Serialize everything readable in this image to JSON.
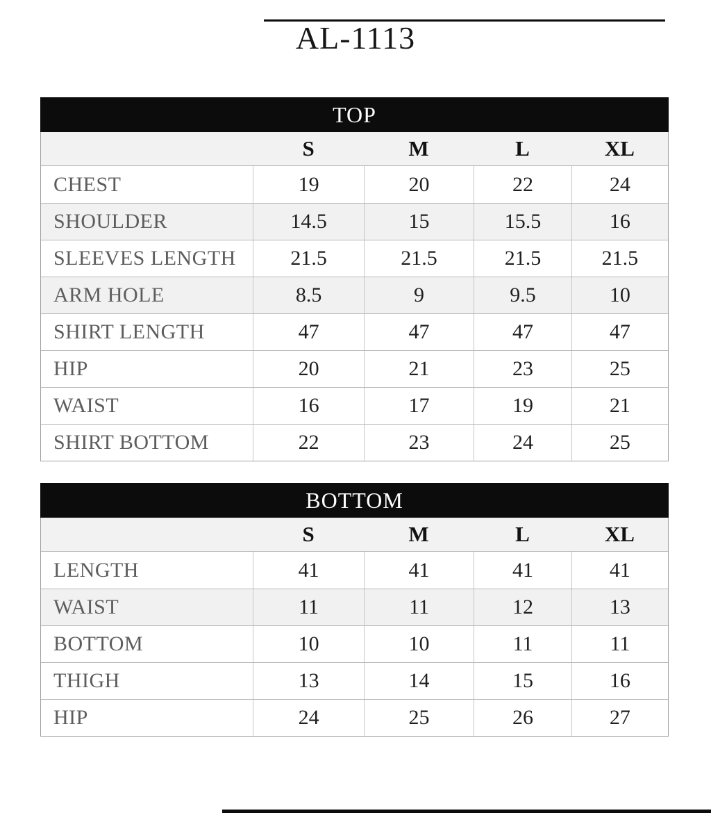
{
  "title": "AL-1113",
  "colors": {
    "header_bg": "#0c0c0c",
    "header_text": "#fdfdfd",
    "size_row_bg": "#f2f2f2",
    "shaded_row_bg": "#f1f1f2",
    "label_color": "#5d5d5d",
    "value_color": "#1f1f1f"
  },
  "tables": [
    {
      "title": "TOP",
      "sizes": [
        "S",
        "M",
        "L",
        "XL"
      ],
      "rows": [
        {
          "label": "CHEST",
          "values": [
            "19",
            "20",
            "22",
            "24"
          ],
          "shaded": false
        },
        {
          "label": "SHOULDER",
          "values": [
            "14.5",
            "15",
            "15.5",
            "16"
          ],
          "shaded": true
        },
        {
          "label": "SLEEVES LENGTH",
          "values": [
            "21.5",
            "21.5",
            "21.5",
            "21.5"
          ],
          "shaded": false
        },
        {
          "label": "ARM HOLE",
          "values": [
            "8.5",
            "9",
            "9.5",
            "10"
          ],
          "shaded": true
        },
        {
          "label": "SHIRT LENGTH",
          "values": [
            "47",
            "47",
            "47",
            "47"
          ],
          "shaded": false
        },
        {
          "label": "HIP",
          "values": [
            "20",
            "21",
            "23",
            "25"
          ],
          "shaded": false
        },
        {
          "label": "WAIST",
          "values": [
            "16",
            "17",
            "19",
            "21"
          ],
          "shaded": false
        },
        {
          "label": "SHIRT BOTTOM",
          "values": [
            "22",
            "23",
            "24",
            "25"
          ],
          "shaded": false
        }
      ]
    },
    {
      "title": "BOTTOM",
      "sizes": [
        "S",
        "M",
        "L",
        "XL"
      ],
      "rows": [
        {
          "label": "LENGTH",
          "values": [
            "41",
            "41",
            "41",
            "41"
          ],
          "shaded": false
        },
        {
          "label": "WAIST",
          "values": [
            "11",
            "11",
            "12",
            "13"
          ],
          "shaded": true
        },
        {
          "label": "BOTTOM",
          "values": [
            "10",
            "10",
            "11",
            "11"
          ],
          "shaded": false
        },
        {
          "label": "THIGH",
          "values": [
            "13",
            "14",
            "15",
            "16"
          ],
          "shaded": false
        },
        {
          "label": "HIP",
          "values": [
            "24",
            "25",
            "26",
            "27"
          ],
          "shaded": false
        }
      ]
    }
  ]
}
